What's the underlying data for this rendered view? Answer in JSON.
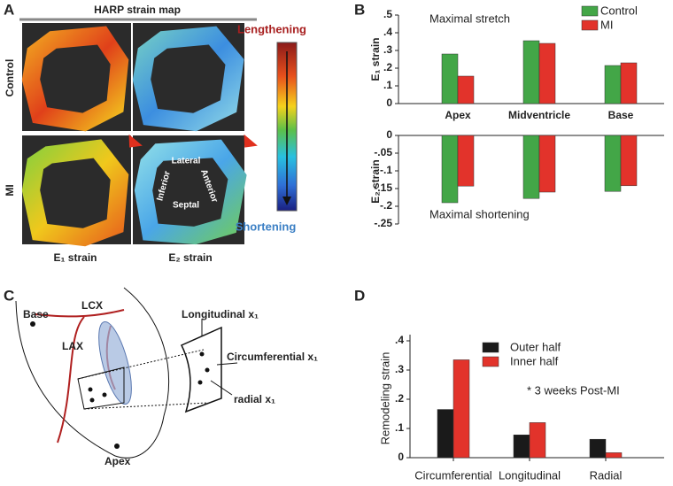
{
  "panels": {
    "a": "A",
    "b": "B",
    "c": "C",
    "d": "D"
  },
  "panel_a": {
    "title": "HARP strain map",
    "lengthening": "Lengthening",
    "shortening": "Shortening",
    "rows": [
      "Control",
      "MI"
    ],
    "columns": [
      "E₁ strain",
      "E₂ strain"
    ],
    "regions": [
      "Lateral",
      "Anterior",
      "Inferior",
      "Septal"
    ]
  },
  "panel_c": {
    "base": "Base",
    "lcx": "LCX",
    "lax": "LAX",
    "apex": "Apex",
    "longitudinal": "Longitudinal x₁",
    "circumferential": "Circumferential x₁",
    "radial": "radial x₁"
  },
  "chart_data": [
    {
      "type": "bar",
      "annotation": "Maximal stretch",
      "ylabel": "E₁ strain",
      "categories": [
        "Apex",
        "Midventricle",
        "Base"
      ],
      "series": [
        {
          "name": "Control",
          "color": "#43a647",
          "values": [
            0.28,
            0.355,
            0.215
          ]
        },
        {
          "name": "MI",
          "color": "#e2332b",
          "values": [
            0.155,
            0.34,
            0.23
          ]
        }
      ],
      "ylim": [
        0,
        0.5
      ],
      "yticks": [
        0,
        {
          "value": 0.1,
          "label": ".1"
        },
        {
          "value": 0.2,
          "label": ".2"
        },
        {
          "value": 0.3,
          "label": ".3"
        },
        {
          "value": 0.4,
          "label": ".4"
        },
        {
          "value": 0.5,
          "label": ".5"
        }
      ],
      "legend": "upper right"
    },
    {
      "type": "bar",
      "annotation": "Maximal shortening",
      "ylabel": "E₂ strain",
      "series": [
        {
          "color": "#43a647",
          "values": [
            -0.19,
            -0.178,
            -0.158
          ]
        },
        {
          "color": "#e2332b",
          "values": [
            -0.143,
            -0.16,
            -0.142
          ]
        }
      ],
      "ylim": [
        -0.25,
        0
      ],
      "yticks": [
        0,
        {
          "value": -0.05,
          "label": "-.05"
        },
        {
          "value": -0.1,
          "label": "-.1"
        },
        {
          "value": -0.15,
          "label": "-.15"
        },
        {
          "value": -0.2,
          "label": "-.2"
        },
        {
          "value": -0.25,
          "label": "-.25"
        }
      ]
    },
    {
      "type": "bar",
      "annotation": "* 3 weeks Post-MI",
      "ylabel": "Remodeling strain",
      "categories": [
        "Circumferential",
        "Longitudinal",
        "Radial"
      ],
      "series": [
        {
          "name": "Outer half",
          "color": "#1a1a1a",
          "values": [
            0.165,
            0.078,
            0.063
          ]
        },
        {
          "name": "Inner half",
          "color": "#e2332b",
          "values": [
            0.335,
            0.12,
            0.017
          ]
        }
      ],
      "ylim": [
        0,
        0.4
      ],
      "yticks": [
        0,
        {
          "value": 0.1,
          "label": ".1"
        },
        {
          "value": 0.2,
          "label": ".2"
        },
        {
          "value": 0.3,
          "label": ".3"
        },
        {
          "value": 0.4,
          "label": ".4"
        }
      ],
      "legend": "upper center"
    }
  ]
}
